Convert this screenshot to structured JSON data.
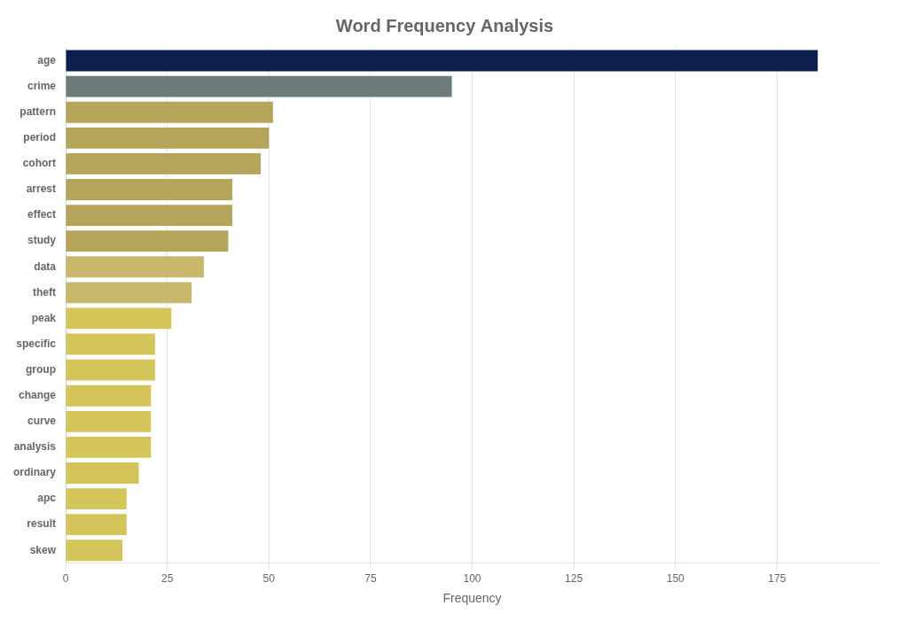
{
  "chart_data": {
    "type": "bar",
    "orientation": "horizontal",
    "title": "Word Frequency Analysis",
    "xlabel": "Frequency",
    "categories": [
      "age",
      "crime",
      "pattern",
      "period",
      "cohort",
      "arrest",
      "effect",
      "study",
      "data",
      "theft",
      "peak",
      "specific",
      "group",
      "change",
      "curve",
      "analysis",
      "ordinary",
      "apc",
      "result",
      "skew"
    ],
    "values": [
      185,
      95,
      51,
      50,
      48,
      41,
      41,
      40,
      34,
      31,
      26,
      22,
      22,
      21,
      21,
      21,
      18,
      15,
      15,
      14
    ],
    "colors": [
      "#0d1f4e",
      "#6e7b7b",
      "#b5a55a",
      "#b5a55a",
      "#b5a55a",
      "#b5a55a",
      "#b5a55a",
      "#b5a55a",
      "#c9b86c",
      "#c9b86c",
      "#d4c55a",
      "#d4c55a",
      "#d4c55a",
      "#d4c55a",
      "#d4c55a",
      "#d4c55a",
      "#d4c55a",
      "#d4c55a",
      "#d4c55a",
      "#d4c55a"
    ],
    "xlim": [
      0,
      200
    ],
    "xticks": [
      0,
      25,
      50,
      75,
      100,
      125,
      150,
      175
    ],
    "grid": true
  }
}
